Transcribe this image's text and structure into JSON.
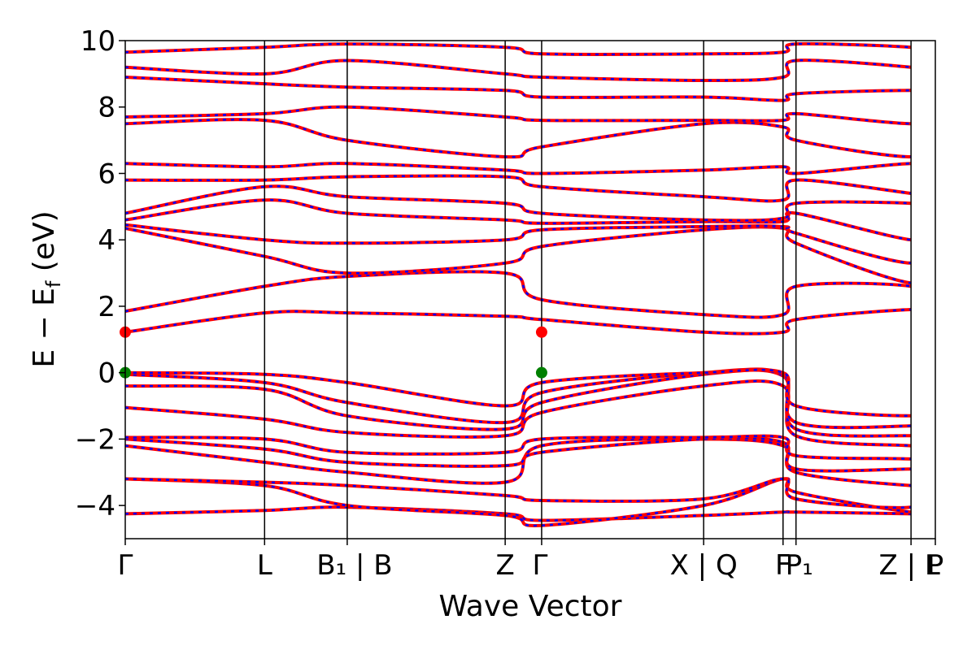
{
  "chart_data": {
    "type": "line",
    "title": "",
    "xlabel": "Wave Vector",
    "ylabel": "E − E_f (eV)",
    "ylabel_parts": {
      "main": "E − E",
      "sub": "f",
      "unit": " (eV)"
    },
    "ylim": [
      -5,
      10
    ],
    "y_ticks": [
      -4,
      -2,
      0,
      2,
      4,
      6,
      8,
      10
    ],
    "y_tick_labels": [
      "−4",
      "−2",
      "0",
      "2",
      "4",
      "6",
      "8",
      "10"
    ],
    "xlim": [
      0,
      1
    ],
    "k_points": [
      {
        "label": "Γ",
        "x": 0.0
      },
      {
        "label": "L",
        "x": 0.172
      },
      {
        "label": "B₁ | B",
        "x": 0.274
      },
      {
        "label": "Z",
        "x": 0.469
      },
      {
        "label": "Γ",
        "x": 0.514
      },
      {
        "label": "X | Q",
        "x": 0.714
      },
      {
        "label": "F",
        "x": 0.812
      },
      {
        "label": "P₁",
        "x": 0.828
      },
      {
        "label": "Z | L",
        "x": 0.97
      },
      {
        "label": "P",
        "x": 1.0
      }
    ],
    "k_tick_labels": [
      {
        "text": "Γ",
        "x": 0.0
      },
      {
        "text": "L",
        "x": 0.172
      },
      {
        "text": "B₁ | B",
        "x": 0.283
      },
      {
        "text": "Z",
        "x": 0.469
      },
      {
        "text": "Γ",
        "x": 0.512
      },
      {
        "text": "X | Q",
        "x": 0.714
      },
      {
        "text": "F",
        "x": 0.812
      },
      {
        "text": "P₁",
        "x": 0.832
      },
      {
        "text": "Z | L",
        "x": 0.968
      },
      {
        "text": "P",
        "x": 1.0
      }
    ],
    "special_points": [
      {
        "x": 0.0,
        "y": 1.22,
        "color": "#ff0000",
        "kind": "CBM"
      },
      {
        "x": 0.514,
        "y": 1.22,
        "color": "#ff0000",
        "kind": "CBM"
      },
      {
        "x": 0.0,
        "y": 0.0,
        "color": "#008000",
        "kind": "VBM"
      },
      {
        "x": 0.514,
        "y": 0.0,
        "color": "#008000",
        "kind": "VBM"
      }
    ],
    "series_style": [
      {
        "name": "spin-up",
        "color": "#ff0000",
        "dashed": false
      },
      {
        "name": "spin-down",
        "color": "#0000ff",
        "dashed": true
      }
    ],
    "bands": [
      [
        -4.25,
        -4.15,
        -4.05,
        -4.25,
        -4.45,
        -4.3,
        -4.2,
        -4.2,
        -4.25,
        -4.3,
        -4.15
      ],
      [
        -3.2,
        -3.4,
        -4.0,
        -4.3,
        -4.6,
        -4.0,
        -3.2,
        -3.6,
        -4.2,
        -4.1,
        -4.0
      ],
      [
        -3.2,
        -3.3,
        -3.4,
        -3.7,
        -3.85,
        -3.8,
        -3.2,
        -3.8,
        -4.05,
        -3.4,
        -3.4
      ],
      [
        -2.2,
        -2.7,
        -3.0,
        -3.3,
        -2.2,
        -2.0,
        -2.2,
        -3.0,
        -3.4,
        -3.3,
        -3.2
      ],
      [
        -2.0,
        -2.3,
        -2.7,
        -2.8,
        -2.4,
        -2.0,
        -2.1,
        -2.9,
        -2.9,
        -2.9,
        -2.95
      ],
      [
        -1.95,
        -2.0,
        -2.4,
        -2.4,
        -2.0,
        -1.95,
        -1.95,
        -2.5,
        -2.6,
        -2.7,
        -2.8
      ],
      [
        -1.05,
        -1.4,
        -1.8,
        -1.9,
        -1.2,
        -0.4,
        -0.4,
        -1.9,
        -2.2,
        -2.2,
        -2.05
      ],
      [
        -0.4,
        -0.5,
        -1.3,
        -1.7,
        -0.9,
        -0.05,
        -0.1,
        -1.7,
        -1.9,
        -1.8,
        -1.85
      ],
      [
        -0.05,
        -0.3,
        -0.9,
        -1.5,
        -0.6,
        0.0,
        -0.05,
        -1.5,
        -1.6,
        -1.4,
        -1.35
      ],
      [
        0.0,
        -0.05,
        -0.3,
        -1.0,
        -0.3,
        0.0,
        0.0,
        -1.0,
        -1.3,
        -1.0,
        -0.4
      ],
      [
        1.22,
        1.8,
        1.8,
        1.7,
        1.6,
        1.22,
        1.22,
        1.6,
        1.9,
        1.75,
        1.7
      ],
      [
        1.85,
        2.6,
        2.9,
        3.0,
        2.2,
        1.75,
        1.75,
        2.6,
        2.6,
        2.0,
        1.85
      ],
      [
        4.35,
        3.5,
        3.0,
        3.3,
        3.8,
        4.3,
        4.35,
        3.9,
        2.7,
        3.4,
        2.9
      ],
      [
        4.45,
        4.0,
        3.9,
        4.0,
        4.3,
        4.4,
        4.4,
        4.2,
        3.3,
        4.1,
        4.0
      ],
      [
        4.6,
        5.2,
        4.8,
        4.6,
        4.5,
        4.55,
        4.55,
        4.8,
        4.0,
        4.3,
        4.4
      ],
      [
        4.8,
        5.6,
        5.3,
        5.1,
        4.8,
        4.6,
        4.65,
        5.1,
        5.1,
        4.9,
        4.6
      ],
      [
        5.8,
        5.8,
        5.9,
        5.9,
        5.6,
        5.3,
        5.2,
        5.8,
        5.4,
        5.3,
        5.0
      ],
      [
        6.3,
        6.2,
        6.3,
        6.1,
        6.0,
        6.1,
        6.2,
        6.0,
        6.3,
        6.1,
        6.0
      ],
      [
        7.5,
        7.6,
        7.0,
        6.5,
        6.8,
        7.5,
        7.4,
        7.0,
        6.5,
        7.0,
        6.8
      ],
      [
        7.7,
        7.8,
        8.0,
        7.7,
        7.6,
        7.6,
        7.6,
        7.8,
        7.5,
        7.8,
        7.8
      ],
      [
        8.9,
        8.7,
        8.6,
        8.5,
        8.3,
        8.3,
        8.2,
        8.4,
        8.5,
        8.4,
        8.3
      ],
      [
        9.2,
        9.0,
        9.4,
        9.0,
        8.9,
        8.8,
        8.9,
        9.4,
        9.2,
        9.0,
        8.6
      ],
      [
        9.65,
        9.8,
        9.9,
        9.8,
        9.6,
        9.6,
        9.65,
        9.9,
        9.8,
        9.6,
        9.4
      ]
    ]
  }
}
